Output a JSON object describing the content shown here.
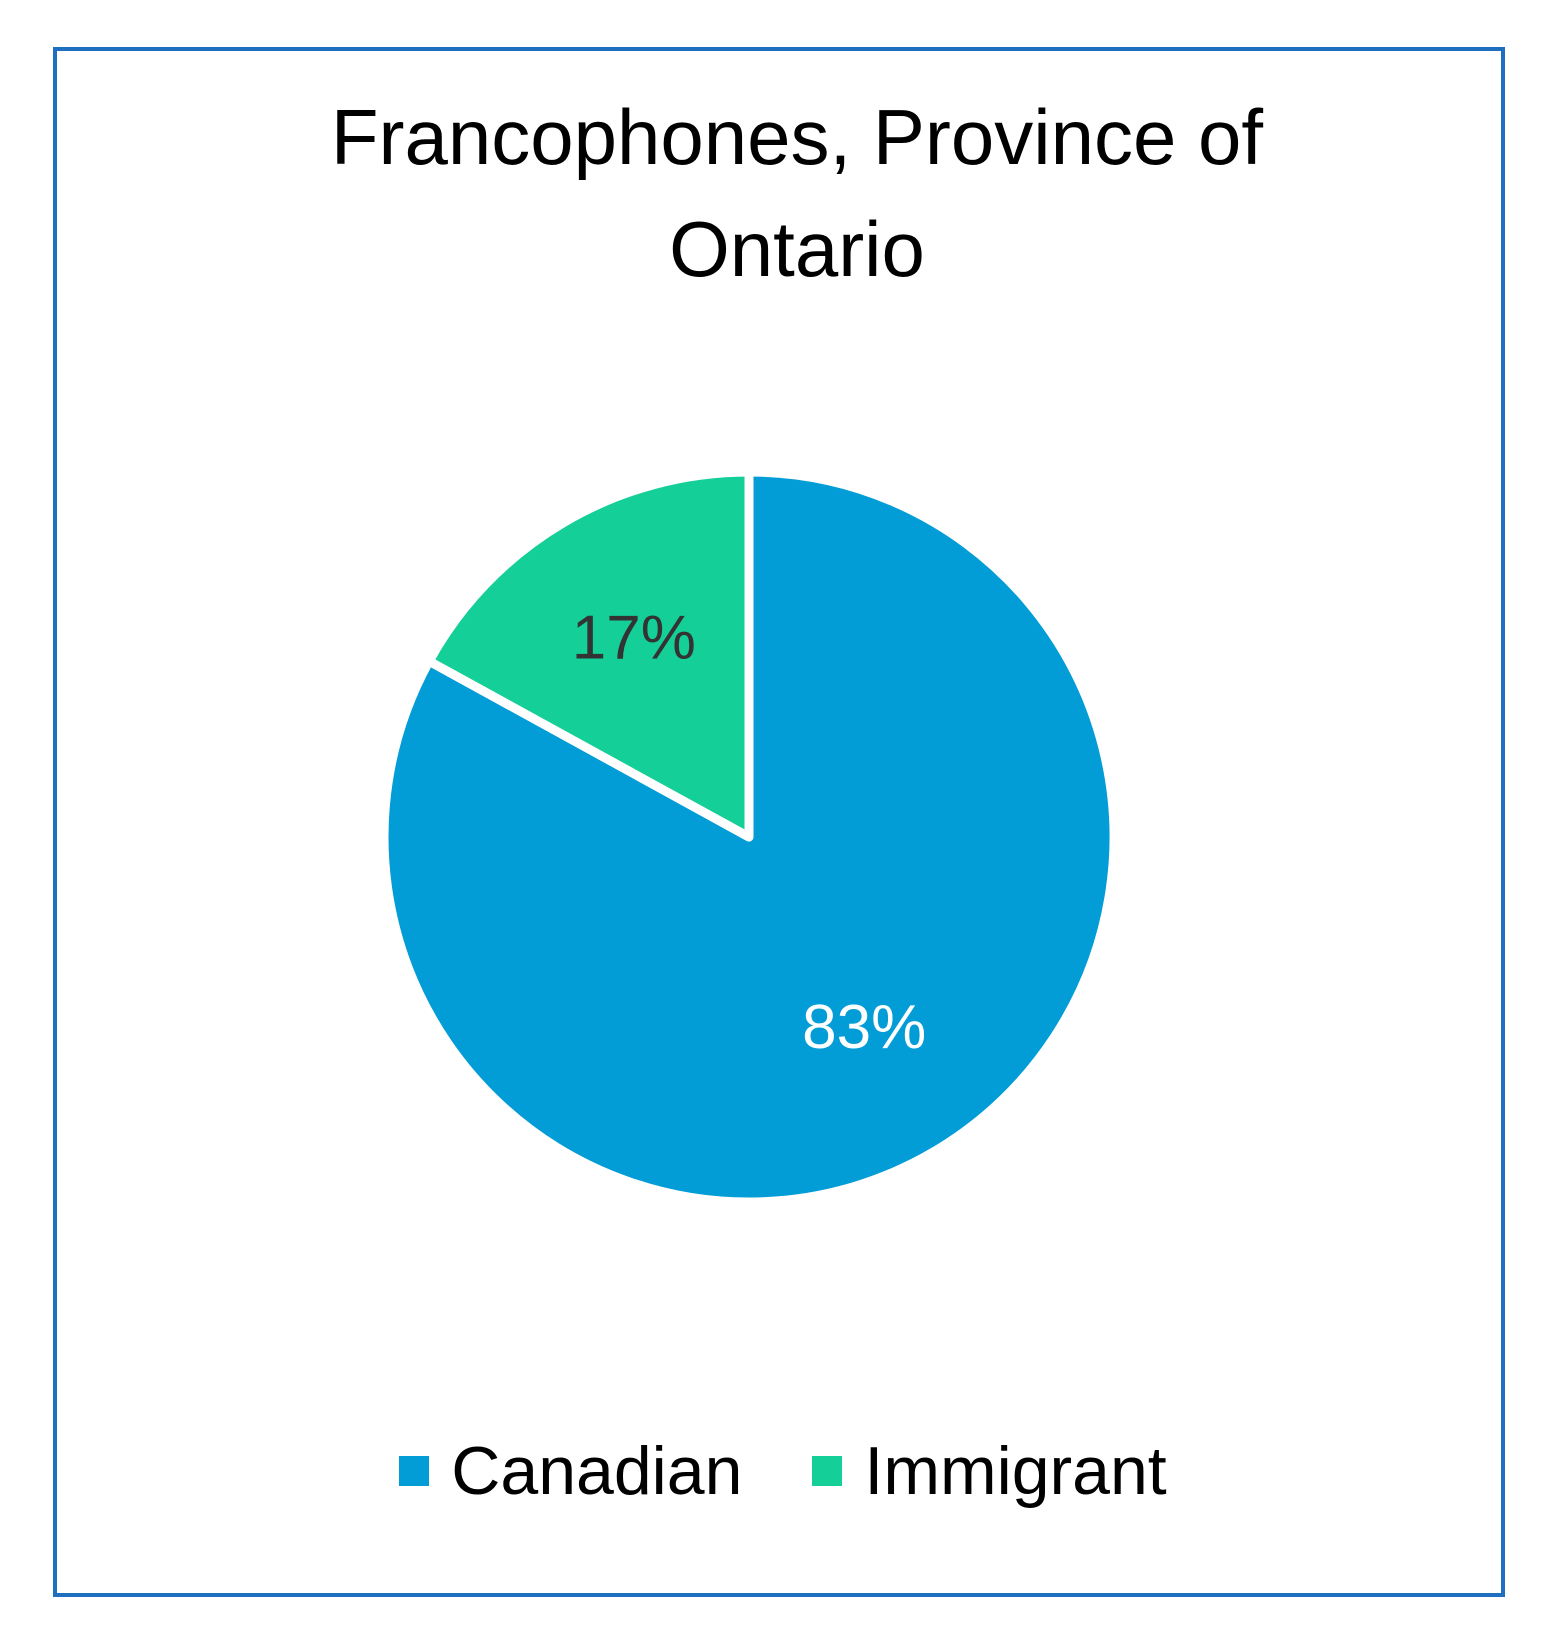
{
  "chart_data": {
    "type": "pie",
    "title": "Francophones, Province of Ontario",
    "categories": [
      "Canadian",
      "Immigrant"
    ],
    "values": [
      83,
      17
    ],
    "data_labels": [
      "83%",
      "17%"
    ],
    "colors": [
      "#029cd6",
      "#14cf97"
    ],
    "label_colors": [
      "#ffffff",
      "#333333"
    ],
    "start_angle_deg": 0,
    "direction": "clockwise",
    "legend": "bottom",
    "frame_color": "#1f6fc0"
  },
  "legend": {
    "items": [
      {
        "label": "Canadian",
        "color": "#029cd6"
      },
      {
        "label": "Immigrant",
        "color": "#14cf97"
      }
    ]
  }
}
